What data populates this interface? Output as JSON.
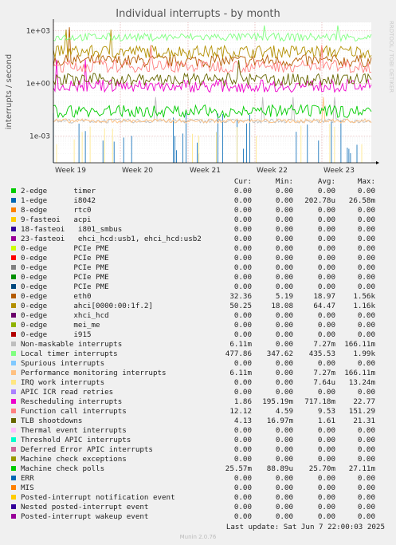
{
  "chart_data": {
    "type": "line",
    "title": "Individual interrupts - by month",
    "ylabel": "interrupts / second",
    "yscale": "log",
    "ylim": [
      3e-05,
      3000
    ],
    "yticks": [
      "1e+03",
      "1e+00",
      "1e-03"
    ],
    "xticks": [
      "Week 19",
      "Week 20",
      "Week 21",
      "Week 22",
      "Week 23"
    ],
    "side_text": "RRDTOOL / TOBI OETIKER",
    "headers": {
      "cur": "Cur:",
      "min": "Min:",
      "avg": "Avg:",
      "max": "Max:"
    },
    "series": [
      {
        "name": "2-edge      timer",
        "color": "#00cc00",
        "cur": "0.00",
        "min": "0.00",
        "avg": "0.00",
        "max": "0.00"
      },
      {
        "name": "1-edge      i8042",
        "color": "#0066b3",
        "cur": "0.00",
        "min": "0.00",
        "avg": "202.78u",
        "max": "26.58m"
      },
      {
        "name": "8-edge      rtc0",
        "color": "#ff8000",
        "cur": "0.00",
        "min": "0.00",
        "avg": "0.00",
        "max": "0.00"
      },
      {
        "name": "9-fasteoi   acpi",
        "color": "#ffcc00",
        "cur": "0.00",
        "min": "0.00",
        "avg": "0.00",
        "max": "0.00"
      },
      {
        "name": "18-fasteoi   i801_smbus",
        "color": "#330099",
        "cur": "0.00",
        "min": "0.00",
        "avg": "0.00",
        "max": "0.00"
      },
      {
        "name": "23-fasteoi   ehci_hcd:usb1, ehci_hcd:usb2",
        "color": "#990099",
        "cur": "0.00",
        "min": "0.00",
        "avg": "0.00",
        "max": "0.00"
      },
      {
        "name": "0-edge      PCIe PME",
        "color": "#ccff00",
        "cur": "0.00",
        "min": "0.00",
        "avg": "0.00",
        "max": "0.00"
      },
      {
        "name": "0-edge      PCIe PME",
        "color": "#ff0000",
        "cur": "0.00",
        "min": "0.00",
        "avg": "0.00",
        "max": "0.00"
      },
      {
        "name": "0-edge      PCIe PME",
        "color": "#808080",
        "cur": "0.00",
        "min": "0.00",
        "avg": "0.00",
        "max": "0.00"
      },
      {
        "name": "0-edge      PCIe PME",
        "color": "#008f00",
        "cur": "0.00",
        "min": "0.00",
        "avg": "0.00",
        "max": "0.00"
      },
      {
        "name": "0-edge      PCIe PME",
        "color": "#00487d",
        "cur": "0.00",
        "min": "0.00",
        "avg": "0.00",
        "max": "0.00"
      },
      {
        "name": "0-edge      eth0",
        "color": "#b35a00",
        "cur": "32.36",
        "min": "5.19",
        "avg": "18.97",
        "max": "1.56k"
      },
      {
        "name": "0-edge      ahci[0000:00:1f.2]",
        "color": "#b38f00",
        "cur": "50.25",
        "min": "18.08",
        "avg": "64.47",
        "max": "1.16k"
      },
      {
        "name": "0-edge      xhci_hcd",
        "color": "#6b006b",
        "cur": "0.00",
        "min": "0.00",
        "avg": "0.00",
        "max": "0.00"
      },
      {
        "name": "0-edge      mei_me",
        "color": "#8fb300",
        "cur": "0.00",
        "min": "0.00",
        "avg": "0.00",
        "max": "0.00"
      },
      {
        "name": "0-edge      i915",
        "color": "#b30000",
        "cur": "0.00",
        "min": "0.00",
        "avg": "0.00",
        "max": "0.00"
      },
      {
        "name": "Non-maskable interrupts",
        "color": "#bebebe",
        "cur": "6.11m",
        "min": "0.00",
        "avg": "7.27m",
        "max": "166.11m"
      },
      {
        "name": "Local timer interrupts",
        "color": "#80ff80",
        "cur": "477.86",
        "min": "347.62",
        "avg": "435.53",
        "max": "1.99k"
      },
      {
        "name": "Spurious interrupts",
        "color": "#80c9ff",
        "cur": "0.00",
        "min": "0.00",
        "avg": "0.00",
        "max": "0.00"
      },
      {
        "name": "Performance monitoring interrupts",
        "color": "#ffc080",
        "cur": "6.11m",
        "min": "0.00",
        "avg": "7.27m",
        "max": "166.11m"
      },
      {
        "name": "IRQ work interrupts",
        "color": "#ffe680",
        "cur": "0.00",
        "min": "0.00",
        "avg": "7.64u",
        "max": "13.24m"
      },
      {
        "name": "APIC ICR read retries",
        "color": "#aa80ff",
        "cur": "0.00",
        "min": "0.00",
        "avg": "0.00",
        "max": "0.00"
      },
      {
        "name": "Rescheduling interrupts",
        "color": "#ee00cc",
        "cur": "1.86",
        "min": "195.19m",
        "avg": "717.18m",
        "max": "22.77"
      },
      {
        "name": "Function call interrupts",
        "color": "#ff8080",
        "cur": "12.12",
        "min": "4.59",
        "avg": "9.53",
        "max": "151.29"
      },
      {
        "name": "TLB shootdowns",
        "color": "#666600",
        "cur": "4.13",
        "min": "16.97m",
        "avg": "1.61",
        "max": "21.31"
      },
      {
        "name": "Thermal event interrupts",
        "color": "#ffbfff",
        "cur": "0.00",
        "min": "0.00",
        "avg": "0.00",
        "max": "0.00"
      },
      {
        "name": "Threshold APIC interrupts",
        "color": "#00ffcc",
        "cur": "0.00",
        "min": "0.00",
        "avg": "0.00",
        "max": "0.00"
      },
      {
        "name": "Deferred Error APIC interrupts",
        "color": "#cc6699",
        "cur": "0.00",
        "min": "0.00",
        "avg": "0.00",
        "max": "0.00"
      },
      {
        "name": "Machine check exceptions",
        "color": "#999900",
        "cur": "0.00",
        "min": "0.00",
        "avg": "0.00",
        "max": "0.00"
      },
      {
        "name": "Machine check polls",
        "color": "#00cc00",
        "cur": "25.57m",
        "min": "88.89u",
        "avg": "25.70m",
        "max": "27.11m"
      },
      {
        "name": "ERR",
        "color": "#0066b3",
        "cur": "0.00",
        "min": "0.00",
        "avg": "0.00",
        "max": "0.00"
      },
      {
        "name": "MIS",
        "color": "#ff8000",
        "cur": "0.00",
        "min": "0.00",
        "avg": "0.00",
        "max": "0.00"
      },
      {
        "name": "Posted-interrupt notification event",
        "color": "#ffcc00",
        "cur": "0.00",
        "min": "0.00",
        "avg": "0.00",
        "max": "0.00"
      },
      {
        "name": "Nested posted-interrupt event",
        "color": "#330099",
        "cur": "0.00",
        "min": "0.00",
        "avg": "0.00",
        "max": "0.00"
      },
      {
        "name": "Posted-interrupt wakeup event",
        "color": "#990099",
        "cur": "0.00",
        "min": "0.00",
        "avg": "0.00",
        "max": "0.00"
      }
    ],
    "last_update": "Last update: Sat Jun  7 22:00:03 2025",
    "footer_brand": "Munin 2.0.76"
  }
}
